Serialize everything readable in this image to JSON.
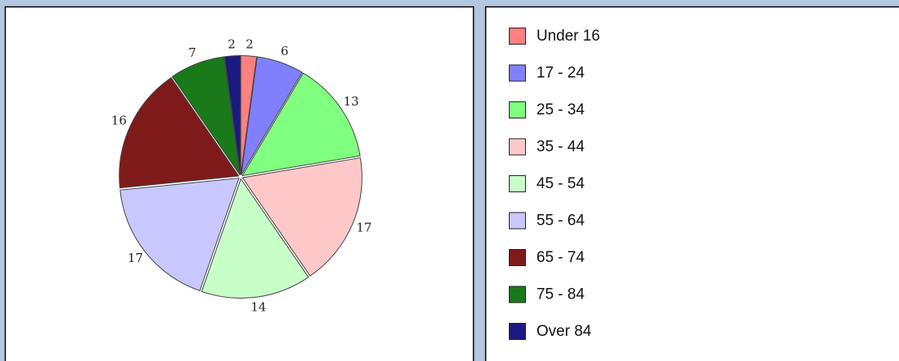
{
  "chart_data": {
    "type": "pie",
    "categories": [
      "Under 16",
      "17 - 24",
      "25 - 34",
      "35 - 44",
      "45 - 54",
      "55 - 64",
      "65 - 74",
      "75 - 84",
      "Over 84"
    ],
    "values": [
      2,
      6,
      13,
      17,
      14,
      17,
      16,
      7,
      2
    ],
    "colors": [
      "#ff8080",
      "#8080ff",
      "#80ff80",
      "#ffc8c8",
      "#c8ffc8",
      "#c8c8ff",
      "#7f1a1a",
      "#1a7a1a",
      "#1a1a80"
    ],
    "legend": "right"
  }
}
